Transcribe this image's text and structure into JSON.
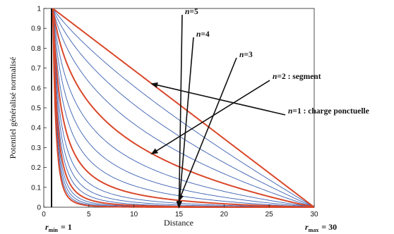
{
  "chart_data": {
    "type": "line",
    "title": "",
    "xlabel": "Distance",
    "ylabel": "Potentiel généralisé normalisé",
    "xlim": [
      0,
      30
    ],
    "ylim": [
      0,
      1
    ],
    "xticks": [
      "0",
      "5",
      "10",
      "15",
      "20",
      "25",
      "30"
    ],
    "yticks": [
      "0",
      "0.1",
      "0.2",
      "0.3",
      "0.4",
      "0.5",
      "0.6",
      "0.7",
      "0.8",
      "0.9",
      "1"
    ],
    "r_min": "r",
    "r_min_sub": "min",
    "r_min_value": "= 1",
    "r_max": "r",
    "r_max_sub": "max",
    "r_max_value": "= 30",
    "n_values": [
      1,
      1.25,
      1.5,
      1.75,
      2,
      2.25,
      2.5,
      2.75,
      3,
      3.25,
      3.5,
      3.75,
      4,
      4.25,
      4.5,
      4.75,
      5
    ],
    "highlighted_n": [
      1,
      2,
      3,
      4,
      5
    ],
    "colors": {
      "curve": "#3a5fb0",
      "highlight": "#d9482b",
      "arrow": "#111111"
    },
    "annotations": [
      {
        "n": 5,
        "var": "n",
        "text": "=5"
      },
      {
        "n": 4,
        "var": "n",
        "text": "=4"
      },
      {
        "n": 3,
        "var": "n",
        "text": "=3"
      },
      {
        "n": 2,
        "var": "n",
        "text": "=2 : segment"
      },
      {
        "n": 1,
        "var": "n",
        "text": "=1 : charge ponctuelle"
      }
    ]
  }
}
